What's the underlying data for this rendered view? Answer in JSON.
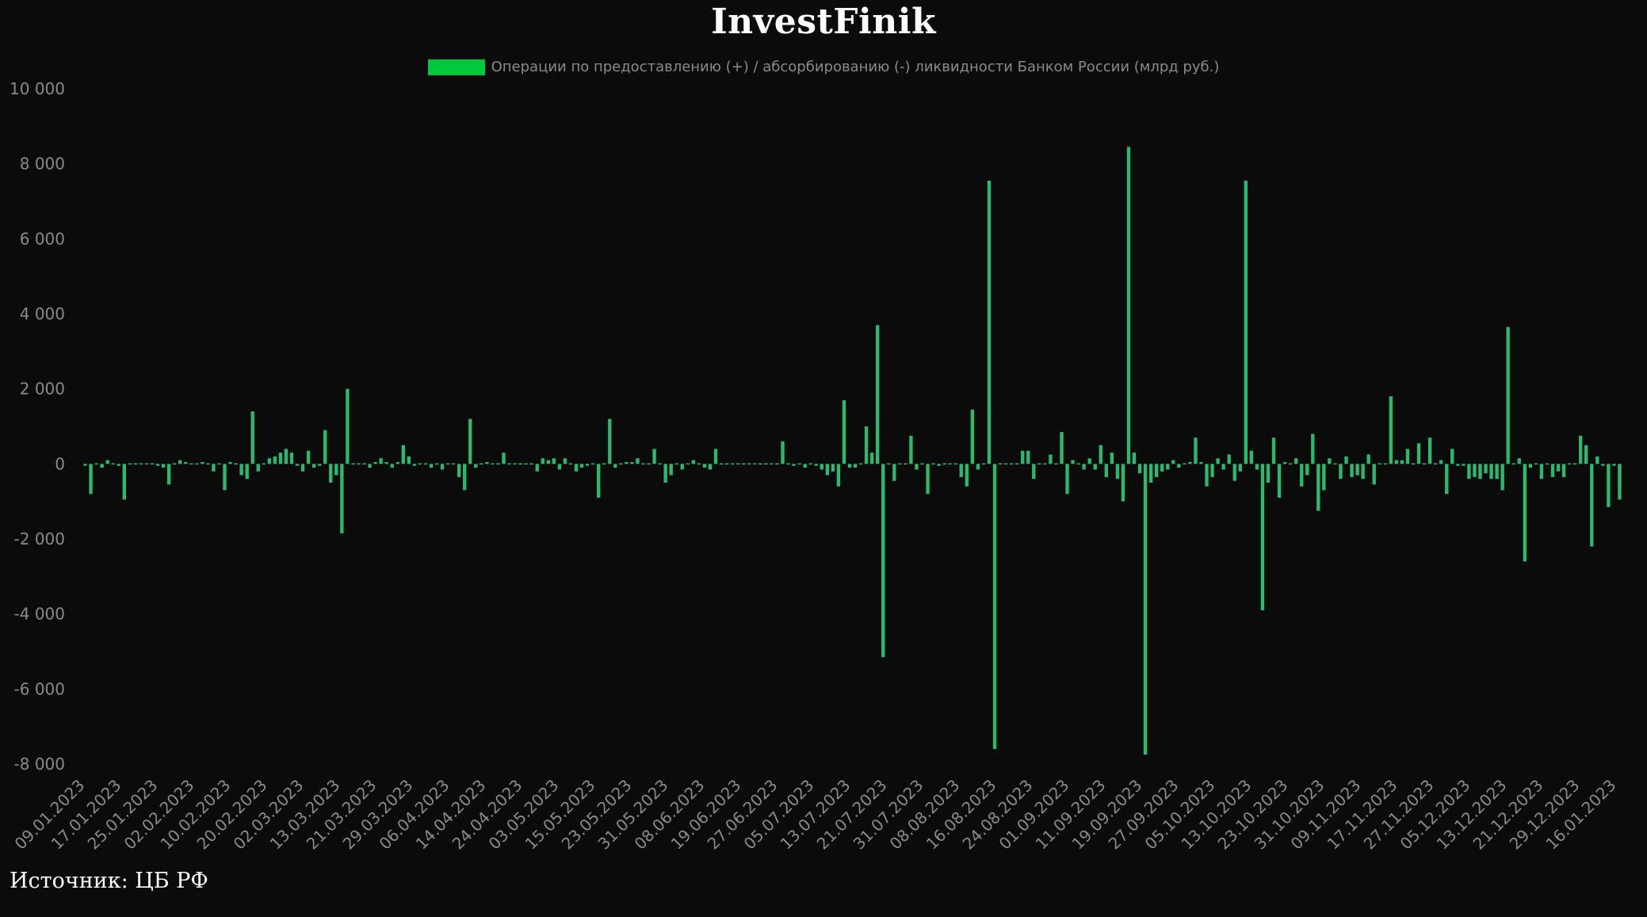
{
  "brand": "InvestFinik",
  "source": "Источник: ЦБ РФ",
  "colors": {
    "background": "#0b0b0b",
    "bar": "#2db870",
    "legend_swatch": "#00c83c",
    "text": "#8a8a8a"
  },
  "chart_data": {
    "type": "bar",
    "title": "InvestFinik",
    "legend": {
      "position": "top-center",
      "entries": [
        "Операции по предоставлению (+) / абсорбированию (-) ликвидности Банком России (млрд руб.)"
      ]
    },
    "series": [
      {
        "name": "Операции по предоставлению (+) / абсорбированию (-) ликвидности Банком России (млрд руб.)",
        "values": [
          -50,
          -800,
          0,
          -100,
          100,
          0,
          -50,
          -950,
          0,
          0,
          0,
          0,
          0,
          -50,
          -100,
          -550,
          0,
          100,
          50,
          0,
          0,
          50,
          0,
          -200,
          0,
          -700,
          50,
          0,
          -300,
          -400,
          1400,
          -200,
          0,
          150,
          200,
          300,
          400,
          300,
          -50,
          -200,
          350,
          -100,
          -50,
          900,
          -500,
          -300,
          -1850,
          2000,
          0,
          0,
          0,
          -100,
          50,
          150,
          50,
          -100,
          50,
          500,
          200,
          -50,
          0,
          0,
          -100,
          0,
          -150,
          0,
          0,
          -350,
          -700,
          1200,
          -100,
          0,
          50,
          0,
          0,
          300,
          0,
          0,
          0,
          0,
          0,
          -200,
          150,
          100,
          150,
          -150,
          150,
          0,
          -200,
          -100,
          -50,
          0,
          -900,
          0,
          1200,
          -100,
          0,
          50,
          50,
          150,
          0,
          0,
          400,
          0,
          -500,
          -300,
          0,
          -150,
          0,
          100,
          0,
          -100,
          -150,
          400,
          0,
          0,
          0,
          0,
          0,
          0,
          0,
          0,
          0,
          -20,
          0,
          600,
          0,
          -50,
          0,
          -100,
          0,
          -50,
          -150,
          -300,
          -200,
          -600,
          1700,
          -100,
          -100,
          0,
          1000,
          300,
          3700,
          -5150,
          0,
          -450,
          0,
          0,
          750,
          -150,
          0,
          -800,
          0,
          -50,
          0,
          0,
          0,
          -350,
          -600,
          1450,
          -150,
          0,
          7550,
          -7600,
          0,
          0,
          0,
          0,
          350,
          350,
          -400,
          0,
          0,
          250,
          0,
          850,
          -800,
          100,
          0,
          -150,
          150,
          -150,
          500,
          -350,
          300,
          -400,
          -1000,
          8450,
          300,
          -250,
          -7750,
          -500,
          -350,
          -200,
          -150,
          100,
          -100,
          0,
          50,
          700,
          50,
          -600,
          -350,
          150,
          -150,
          250,
          -450,
          -200,
          7550,
          350,
          -150,
          -3900,
          -500,
          700,
          -900,
          50,
          0,
          150,
          -600,
          -300,
          800,
          -1250,
          -700,
          150,
          0,
          -400,
          200,
          -350,
          -300,
          -400,
          250,
          -550,
          0,
          0,
          1800,
          100,
          100,
          400,
          0,
          550,
          0,
          700,
          0,
          100,
          -800,
          400,
          -50,
          -50,
          -400,
          -350,
          -400,
          -250,
          -400,
          -400,
          -700,
          3650,
          0,
          150,
          -2600,
          -100,
          0,
          -400,
          0,
          -350,
          -200,
          -350,
          0,
          0,
          750,
          500,
          -2200,
          200,
          -50,
          -1150,
          -50,
          -950
        ]
      }
    ],
    "x_tick_labels": [
      "09.01.2023",
      "17.01.2023",
      "25.01.2023",
      "02.02.2023",
      "10.02.2023",
      "20.02.2023",
      "02.03.2023",
      "13.03.2023",
      "21.03.2023",
      "29.03.2023",
      "06.04.2023",
      "14.04.2023",
      "24.04.2023",
      "03.05.2023",
      "15.05.2023",
      "23.05.2023",
      "31.05.2023",
      "08.06.2023",
      "19.06.2023",
      "27.06.2023",
      "05.07.2023",
      "13.07.2023",
      "21.07.2023",
      "31.07.2023",
      "08.08.2023",
      "16.08.2023",
      "24.08.2023",
      "01.09.2023",
      "11.09.2023",
      "19.09.2023",
      "27.09.2023",
      "05.10.2023",
      "13.10.2023",
      "23.10.2023",
      "31.10.2023",
      "09.11.2023",
      "17.11.2023",
      "27.11.2023",
      "05.12.2023",
      "13.12.2023",
      "21.12.2023",
      "29.12.2023",
      "16.01.2023"
    ],
    "y_ticks": [
      10000,
      8000,
      6000,
      4000,
      2000,
      0,
      -2000,
      -4000,
      -6000,
      -8000
    ],
    "y_tick_labels": [
      "10 000",
      "8 000",
      "6 000",
      "4 000",
      "2 000",
      "0",
      "-2 000",
      "-4 000",
      "-6 000",
      "-8 000"
    ],
    "ylim": [
      -8000,
      10000
    ],
    "grid": false,
    "xlabel": "",
    "ylabel": ""
  }
}
